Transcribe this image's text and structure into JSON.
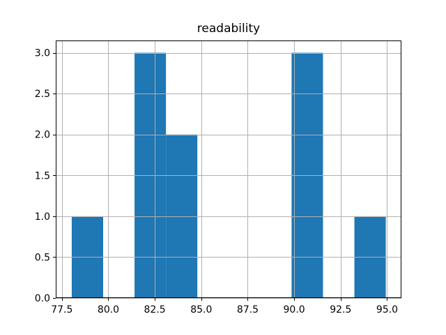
{
  "figure": {
    "background_color": "#ffffff",
    "text_color": "#000000"
  },
  "chart_data": {
    "type": "bar",
    "subtype": "histogram",
    "title": "readability",
    "xlabel": "",
    "ylabel": "",
    "bin_edges": [
      78.03,
      79.72,
      81.41,
      83.1,
      84.79,
      86.48,
      88.17,
      89.86,
      91.55,
      93.24,
      94.93
    ],
    "counts": [
      1,
      0,
      3,
      2,
      0,
      0,
      0,
      3,
      0,
      1
    ],
    "xticks": [
      77.5,
      80.0,
      82.5,
      85.0,
      87.5,
      90.0,
      92.5,
      95.0
    ],
    "xtick_labels": [
      "77.5",
      "80.0",
      "82.5",
      "85.0",
      "87.5",
      "90.0",
      "92.5",
      "95.0"
    ],
    "yticks": [
      0.0,
      0.5,
      1.0,
      1.5,
      2.0,
      2.5,
      3.0
    ],
    "ytick_labels": [
      "0.0",
      "0.5",
      "1.0",
      "1.5",
      "2.0",
      "2.5",
      "3.0"
    ],
    "xlim": [
      77.17,
      95.77
    ],
    "ylim": [
      0,
      3.15
    ],
    "grid": true,
    "grid_above_bars": true,
    "legend": "none",
    "bar_color": "#1f77b4",
    "grid_color": "#b0b0b0",
    "spine_color": "#000000"
  }
}
